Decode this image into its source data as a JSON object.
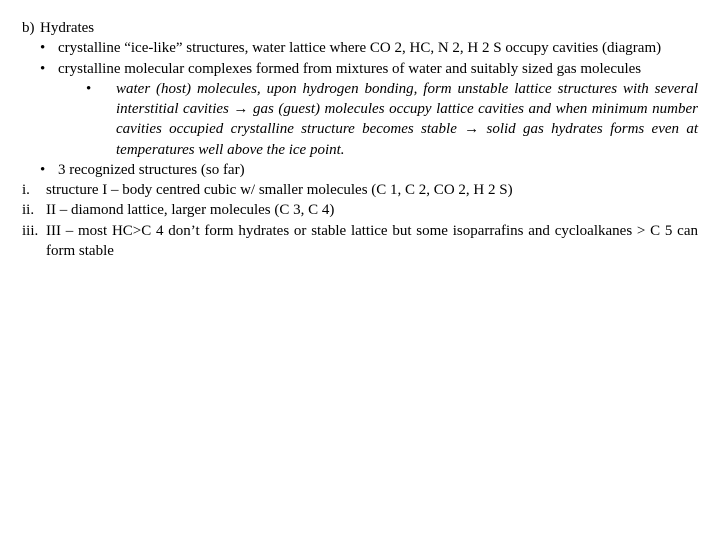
{
  "text_color": "#000000",
  "background_color": "#ffffff",
  "font_family": "Times New Roman",
  "base_font_size_pt": 11,
  "heading": {
    "label": "b)",
    "title": "Hydrates"
  },
  "bullets": [
    {
      "marker": "•",
      "text": "crystalline “ice-like” structures, water lattice where CO 2, HC, N 2, H 2 S occupy cavities (diagram)"
    },
    {
      "marker": "•",
      "text": "crystalline molecular complexes formed from mixtures of water and suitably sized gas molecules"
    }
  ],
  "nested_bullet": {
    "marker": "•",
    "italic": true,
    "text": "water (host) molecules, upon hydrogen bonding, form unstable lattice structures with several interstitial cavities → gas (guest) molecules occupy lattice cavities and when minimum number cavities occupied crystalline structure becomes stable → solid gas hydrates forms even at temperatures well above the ice point."
  },
  "bullet3": {
    "marker": "•",
    "text": "3 recognized structures (so far)"
  },
  "roman": [
    {
      "label": "i.",
      "text": "structure I – body centred cubic w/ smaller molecules (C 1, C 2, CO 2, H 2 S)"
    },
    {
      "label": "ii.",
      "text": "II – diamond lattice, larger molecules (C 3, C 4)"
    },
    {
      "label": "iii.",
      "text": "III – most HC>C 4 don’t form hydrates or stable lattice but some isoparrafins and cycloalkanes > C 5 can form stable"
    }
  ]
}
